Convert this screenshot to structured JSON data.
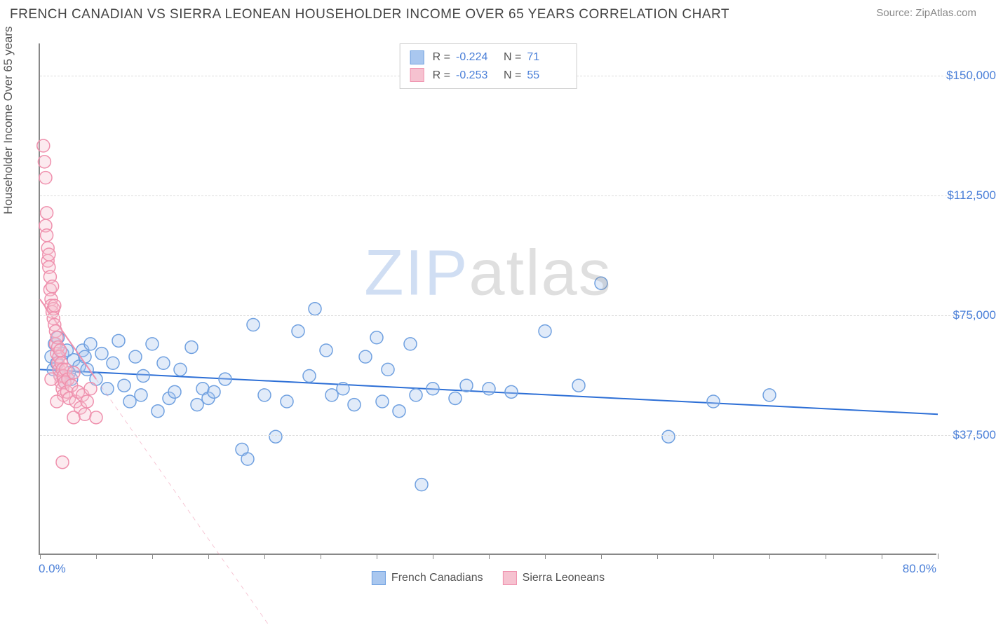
{
  "title": "FRENCH CANADIAN VS SIERRA LEONEAN HOUSEHOLDER INCOME OVER 65 YEARS CORRELATION CHART",
  "source_label": "Source: ",
  "source_name": "ZipAtlas.com",
  "watermark_zip": "ZIP",
  "watermark_atlas": "atlas",
  "chart": {
    "type": "scatter",
    "xlim": [
      0,
      80
    ],
    "ylim": [
      0,
      160000
    ],
    "x_axis_min_label": "0.0%",
    "x_axis_max_label": "80.0%",
    "y_axis_title": "Householder Income Over 65 years",
    "y_ticks": [
      37500,
      75000,
      112500,
      150000
    ],
    "y_tick_labels": [
      "$37,500",
      "$75,000",
      "$112,500",
      "$150,000"
    ],
    "x_tick_positions_pct": [
      0,
      6.25,
      12.5,
      18.75,
      25,
      31.25,
      37.5,
      43.75,
      50,
      56.25,
      62.5,
      68.75,
      75,
      81.25,
      87.5,
      93.75,
      100
    ],
    "grid_color": "#dddddd",
    "axis_color": "#888888",
    "background_color": "#ffffff",
    "marker_radius": 9,
    "marker_stroke_width": 1.5,
    "marker_fill_opacity": 0.35,
    "trend_line_width": 2
  },
  "series": [
    {
      "name": "French Canadians",
      "legend_label": "French Canadians",
      "color_fill": "#a9c7ef",
      "color_stroke": "#6fa0e0",
      "trend_color": "#2d6fd6",
      "trend_dash": "none",
      "R_label": "R =",
      "R_value": "-0.224",
      "N_label": "N =",
      "N_value": "71",
      "trend": {
        "x1": 0,
        "y1": 58000,
        "x2": 80,
        "y2": 44000
      },
      "points": [
        [
          1.0,
          62000
        ],
        [
          1.2,
          58000
        ],
        [
          1.3,
          66000
        ],
        [
          1.5,
          60000
        ],
        [
          1.6,
          68000
        ],
        [
          1.8,
          56000
        ],
        [
          2.0,
          63000
        ],
        [
          2.2,
          54000
        ],
        [
          2.4,
          64000
        ],
        [
          2.6,
          57000
        ],
        [
          2.8,
          55000
        ],
        [
          3.0,
          61000
        ],
        [
          3.5,
          59000
        ],
        [
          3.8,
          64000
        ],
        [
          4.0,
          62000
        ],
        [
          4.2,
          58000
        ],
        [
          4.5,
          66000
        ],
        [
          5.0,
          55000
        ],
        [
          5.5,
          63000
        ],
        [
          6.0,
          52000
        ],
        [
          6.5,
          60000
        ],
        [
          7.0,
          67000
        ],
        [
          7.5,
          53000
        ],
        [
          8.0,
          48000
        ],
        [
          8.5,
          62000
        ],
        [
          9.0,
          50000
        ],
        [
          9.2,
          56000
        ],
        [
          10.0,
          66000
        ],
        [
          10.5,
          45000
        ],
        [
          11.0,
          60000
        ],
        [
          11.5,
          49000
        ],
        [
          12.0,
          51000
        ],
        [
          12.5,
          58000
        ],
        [
          13.5,
          65000
        ],
        [
          14.0,
          47000
        ],
        [
          14.5,
          52000
        ],
        [
          15.0,
          49000
        ],
        [
          15.5,
          51000
        ],
        [
          16.5,
          55000
        ],
        [
          18.0,
          33000
        ],
        [
          18.5,
          30000
        ],
        [
          19.0,
          72000
        ],
        [
          20.0,
          50000
        ],
        [
          21.0,
          37000
        ],
        [
          22.0,
          48000
        ],
        [
          23.0,
          70000
        ],
        [
          24.0,
          56000
        ],
        [
          24.5,
          77000
        ],
        [
          25.5,
          64000
        ],
        [
          26.0,
          50000
        ],
        [
          27.0,
          52000
        ],
        [
          28.0,
          47000
        ],
        [
          29.0,
          62000
        ],
        [
          30.0,
          68000
        ],
        [
          30.5,
          48000
        ],
        [
          31.0,
          58000
        ],
        [
          32.0,
          45000
        ],
        [
          33.0,
          66000
        ],
        [
          33.5,
          50000
        ],
        [
          34.0,
          22000
        ],
        [
          35.0,
          52000
        ],
        [
          37.0,
          49000
        ],
        [
          38.0,
          53000
        ],
        [
          40.0,
          52000
        ],
        [
          42.0,
          51000
        ],
        [
          45.0,
          70000
        ],
        [
          48.0,
          53000
        ],
        [
          50.0,
          85000
        ],
        [
          56.0,
          37000
        ],
        [
          60.0,
          48000
        ],
        [
          65.0,
          50000
        ]
      ]
    },
    {
      "name": "Sierra Leoneans",
      "legend_label": "Sierra Leoneans",
      "color_fill": "#f6c2d0",
      "color_stroke": "#ef90ad",
      "trend_color": "#ef90ad",
      "trend_dash": "dashed",
      "R_label": "R =",
      "R_value": "-0.253",
      "N_label": "N =",
      "N_value": "55",
      "trend": {
        "x1": 0,
        "y1": 80000,
        "x2": 5,
        "y2": 55000
      },
      "trend_extrapolate": {
        "x1": 5,
        "y1": 55000,
        "x2": 21,
        "y2": -25000
      },
      "points": [
        [
          0.3,
          128000
        ],
        [
          0.4,
          123000
        ],
        [
          0.5,
          118000
        ],
        [
          0.5,
          103000
        ],
        [
          0.6,
          107000
        ],
        [
          0.6,
          100000
        ],
        [
          0.7,
          96000
        ],
        [
          0.7,
          92000
        ],
        [
          0.8,
          90000
        ],
        [
          0.8,
          94000
        ],
        [
          0.9,
          87000
        ],
        [
          0.9,
          83000
        ],
        [
          1.0,
          80000
        ],
        [
          1.0,
          78000
        ],
        [
          1.1,
          84000
        ],
        [
          1.1,
          76000
        ],
        [
          1.2,
          77000
        ],
        [
          1.2,
          74000
        ],
        [
          1.3,
          78000
        ],
        [
          1.3,
          72000
        ],
        [
          1.4,
          70000
        ],
        [
          1.4,
          66000
        ],
        [
          1.5,
          68000
        ],
        [
          1.5,
          63000
        ],
        [
          1.6,
          65000
        ],
        [
          1.6,
          60000
        ],
        [
          1.7,
          62000
        ],
        [
          1.7,
          58000
        ],
        [
          1.8,
          64000
        ],
        [
          1.8,
          56000
        ],
        [
          1.9,
          60000
        ],
        [
          1.9,
          54000
        ],
        [
          2.0,
          58000
        ],
        [
          2.0,
          52000
        ],
        [
          2.1,
          56000
        ],
        [
          2.1,
          50000
        ],
        [
          2.2,
          54000
        ],
        [
          2.3,
          58000
        ],
        [
          2.4,
          51000
        ],
        [
          2.5,
          55000
        ],
        [
          2.6,
          49000
        ],
        [
          2.8,
          53000
        ],
        [
          3.0,
          57000
        ],
        [
          3.2,
          48000
        ],
        [
          3.4,
          51000
        ],
        [
          3.6,
          46000
        ],
        [
          3.8,
          50000
        ],
        [
          4.0,
          44000
        ],
        [
          4.2,
          48000
        ],
        [
          4.5,
          52000
        ],
        [
          2.0,
          29000
        ],
        [
          3.0,
          43000
        ],
        [
          5.0,
          43000
        ],
        [
          1.5,
          48000
        ],
        [
          1.0,
          55000
        ]
      ]
    }
  ]
}
